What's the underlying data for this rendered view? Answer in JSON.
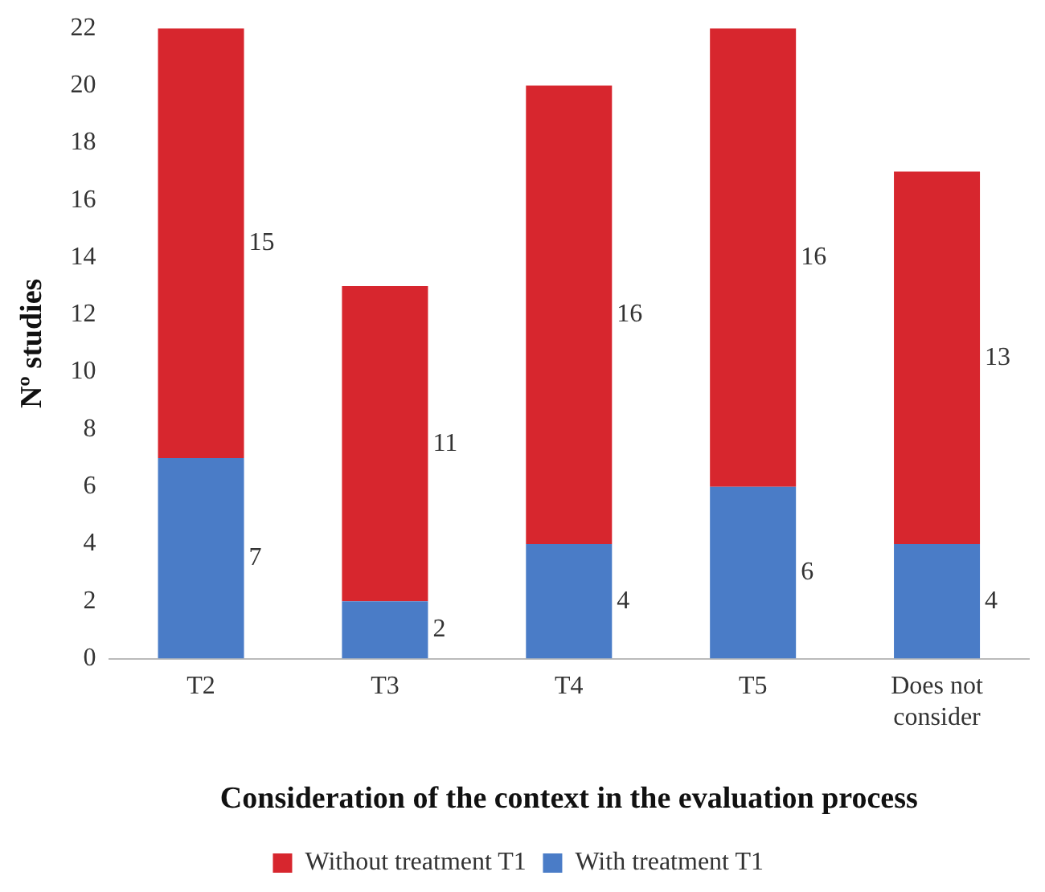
{
  "chart_data": {
    "type": "bar",
    "stacked": true,
    "xlabel": "Consideration of the context in the evaluation process",
    "ylabel": "Nº studies",
    "categories": [
      "T2",
      "T3",
      "T4",
      "T5",
      "Does not consider"
    ],
    "series": [
      {
        "name": "With treatment T1",
        "color": "#4a7cc7",
        "values": [
          7,
          2,
          4,
          6,
          4
        ]
      },
      {
        "name": "Without treatment T1",
        "color": "#d7262e",
        "values": [
          15,
          11,
          16,
          16,
          13
        ]
      }
    ],
    "ylim": [
      0,
      22
    ],
    "yticks": [
      0,
      2,
      4,
      6,
      8,
      10,
      12,
      14,
      16,
      18,
      20,
      22
    ],
    "grid": false,
    "legend": "bottom",
    "data_labels": true
  }
}
